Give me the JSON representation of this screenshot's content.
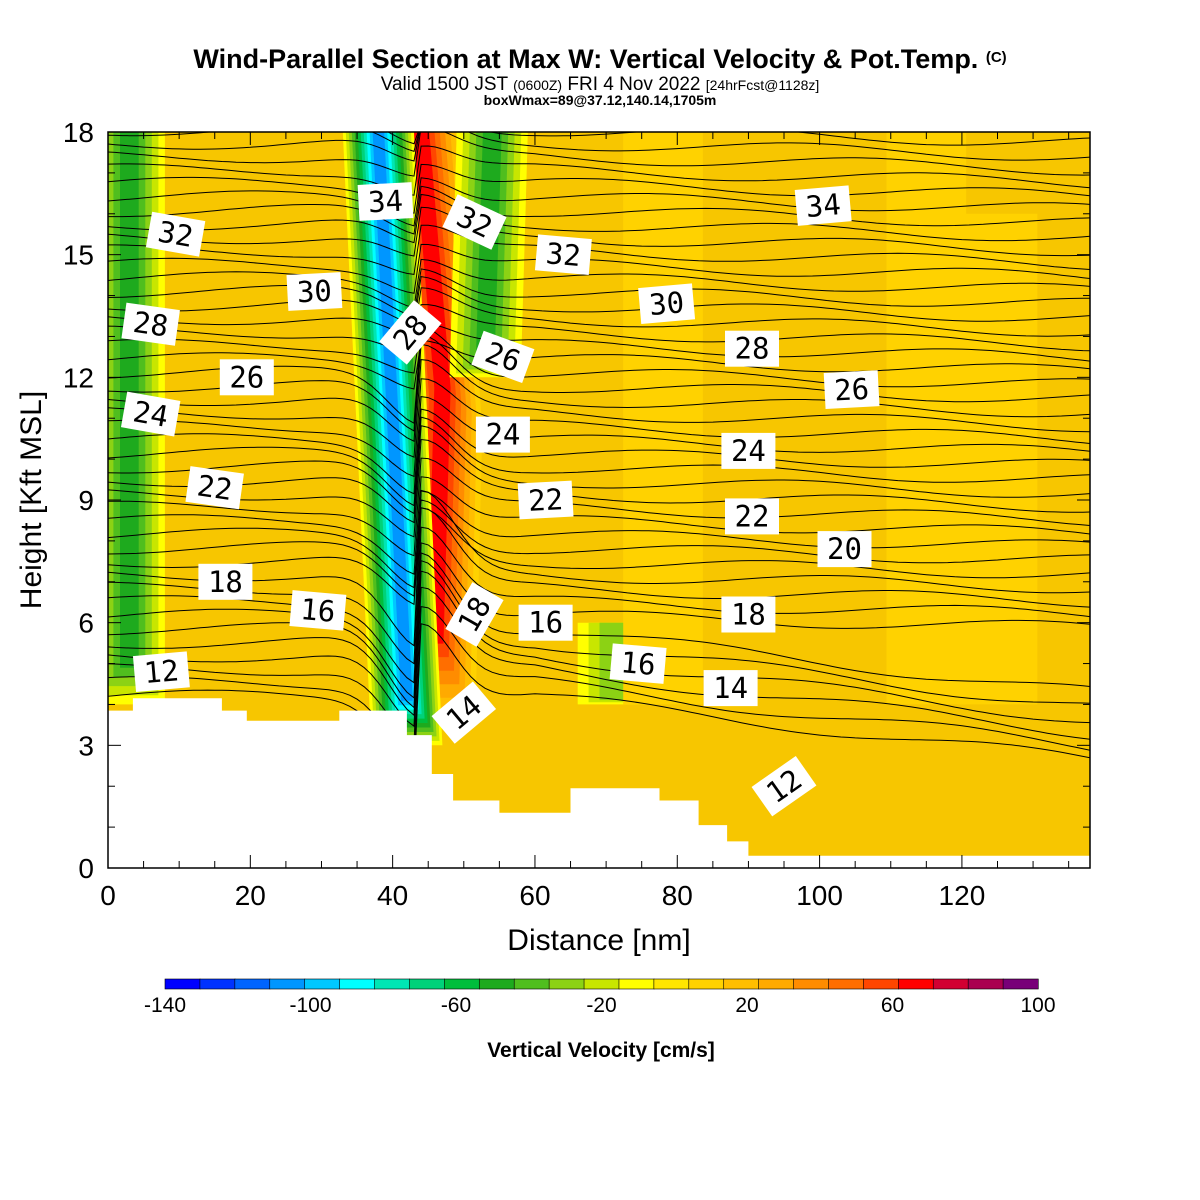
{
  "header": {
    "title_main": "Wind-Parallel Section at Max W: Vertical Velocity & Pot.Temp.",
    "title_mark": "(C)",
    "valid_prefix": "Valid 1500 JST",
    "valid_utc": "(0600Z)",
    "valid_date": "FRI 4 Nov 2022",
    "valid_fcst": "[24hrFcst@1128z]",
    "box_info": "boxWmax=89@37.12,140.14,1705m"
  },
  "colors": {
    "background": "#ffffff",
    "terrain": "#ffffff",
    "contour": "#000000",
    "base_fill": "#f7c600"
  },
  "chart_data": {
    "type": "heatmap",
    "xlabel": "Distance [nm]",
    "ylabel": "Height [Kft MSL]",
    "xlim": [
      0,
      138
    ],
    "ylim": [
      0,
      18
    ],
    "x_ticks": [
      0,
      20,
      40,
      60,
      80,
      100,
      120
    ],
    "y_ticks": [
      0,
      3,
      6,
      9,
      12,
      15,
      18
    ],
    "colorbar": {
      "label": "Vertical Velocity [cm/s]",
      "range": [
        -140,
        100
      ],
      "step": 10,
      "tick_labels": [
        -140,
        -100,
        -60,
        -20,
        20,
        60,
        100
      ],
      "colors": [
        "#0000ff",
        "#0032ff",
        "#0064ff",
        "#0096ff",
        "#00c8ff",
        "#00ffff",
        "#00e6b4",
        "#00d27a",
        "#00be3c",
        "#1eaa1e",
        "#50be1e",
        "#8cd214",
        "#c8e600",
        "#ffff00",
        "#ffe600",
        "#ffd200",
        "#ffbe00",
        "#ffaa00",
        "#ff8c00",
        "#ff6e00",
        "#ff4600",
        "#ff0000",
        "#d20032",
        "#aa0050",
        "#780078"
      ]
    },
    "velocity_features": [
      {
        "kind": "updraft",
        "x_top": 44,
        "x_mid": 47,
        "x_bottom": 46,
        "y_range": [
          3.5,
          18
        ],
        "peak": 89
      },
      {
        "kind": "downdraft",
        "x_top": 38,
        "x_bottom": 42,
        "y_range": [
          3,
          18
        ],
        "peak": -110
      },
      {
        "kind": "downdraft",
        "x_top": 54,
        "x_bottom": 53,
        "y_range": [
          12,
          18
        ],
        "peak": -50
      },
      {
        "kind": "downdraft",
        "x_top": 3,
        "x_bottom": 3,
        "y_range": [
          4,
          18
        ],
        "peak": -50
      },
      {
        "kind": "downdraft",
        "x_top": 71,
        "x_bottom": 71,
        "y_range": [
          4,
          6
        ],
        "peak": -30
      },
      {
        "kind": "updraft",
        "x_top": 78,
        "x_bottom": 78,
        "y_range": [
          4,
          18
        ],
        "peak": 20
      },
      {
        "kind": "updraft",
        "x_top": 115,
        "x_bottom": 115,
        "y_range": [
          4,
          18
        ],
        "peak": 20
      },
      {
        "kind": "updraft",
        "x_top": 125,
        "x_bottom": 125,
        "y_range": [
          4,
          16
        ],
        "peak": 20
      }
    ],
    "terrain_profile": [
      {
        "x": 0,
        "h": 3.85
      },
      {
        "x": 3.5,
        "h": 4.15
      },
      {
        "x": 16,
        "h": 3.85
      },
      {
        "x": 19.5,
        "h": 3.6
      },
      {
        "x": 32.5,
        "h": 3.85
      },
      {
        "x": 42,
        "h": 3.25
      },
      {
        "x": 45.5,
        "h": 2.3
      },
      {
        "x": 48.5,
        "h": 1.65
      },
      {
        "x": 55,
        "h": 1.35
      },
      {
        "x": 65,
        "h": 1.95
      },
      {
        "x": 77.5,
        "h": 1.65
      },
      {
        "x": 83,
        "h": 1.05
      },
      {
        "x": 87,
        "h": 0.65
      },
      {
        "x": 90,
        "h": 0.3
      },
      {
        "x": 138,
        "h": 0.3
      }
    ],
    "theta_contours": {
      "levels": [
        12,
        14,
        16,
        18,
        20,
        22,
        24,
        26,
        28,
        30,
        32,
        34
      ],
      "labels": [
        {
          "text": "12",
          "x": 7.5,
          "y": 4.8,
          "angle": -5
        },
        {
          "text": "18",
          "x": 16.5,
          "y": 7.0,
          "angle": 0
        },
        {
          "text": "16",
          "x": 29.5,
          "y": 6.3,
          "angle": 5
        },
        {
          "text": "22",
          "x": 15,
          "y": 9.3,
          "angle": 8
        },
        {
          "text": "24",
          "x": 6,
          "y": 11.1,
          "angle": 10
        },
        {
          "text": "26",
          "x": 19.5,
          "y": 12.0,
          "angle": 0
        },
        {
          "text": "28",
          "x": 6,
          "y": 13.3,
          "angle": 8
        },
        {
          "text": "30",
          "x": 29,
          "y": 14.1,
          "angle": -3
        },
        {
          "text": "32",
          "x": 9.5,
          "y": 15.5,
          "angle": 10
        },
        {
          "text": "34",
          "x": 39,
          "y": 16.3,
          "angle": -3
        },
        {
          "text": "28",
          "x": 42.5,
          "y": 13.1,
          "angle": -50
        },
        {
          "text": "32",
          "x": 51.5,
          "y": 15.8,
          "angle": 25
        },
        {
          "text": "26",
          "x": 55.5,
          "y": 12.5,
          "angle": 20
        },
        {
          "text": "24",
          "x": 55.5,
          "y": 10.6,
          "angle": 0
        },
        {
          "text": "22",
          "x": 61.5,
          "y": 9.0,
          "angle": -3
        },
        {
          "text": "18",
          "x": 51.5,
          "y": 6.2,
          "angle": -60
        },
        {
          "text": "14",
          "x": 50,
          "y": 3.8,
          "angle": -40
        },
        {
          "text": "16",
          "x": 61.5,
          "y": 6.0,
          "angle": 0
        },
        {
          "text": "32",
          "x": 64,
          "y": 15.0,
          "angle": 5
        },
        {
          "text": "30",
          "x": 78.5,
          "y": 13.8,
          "angle": -5
        },
        {
          "text": "16",
          "x": 74.5,
          "y": 5.0,
          "angle": 5
        },
        {
          "text": "28",
          "x": 90.5,
          "y": 12.7,
          "angle": 0
        },
        {
          "text": "24",
          "x": 90,
          "y": 10.2,
          "angle": 0
        },
        {
          "text": "22",
          "x": 90.5,
          "y": 8.6,
          "angle": 0
        },
        {
          "text": "18",
          "x": 90,
          "y": 6.2,
          "angle": 0
        },
        {
          "text": "14",
          "x": 87.5,
          "y": 4.4,
          "angle": 0
        },
        {
          "text": "12",
          "x": 95,
          "y": 2.0,
          "angle": -35
        },
        {
          "text": "34",
          "x": 100.5,
          "y": 16.2,
          "angle": -5
        },
        {
          "text": "26",
          "x": 104.5,
          "y": 11.7,
          "angle": -3
        },
        {
          "text": "20",
          "x": 103.5,
          "y": 7.8,
          "angle": 0
        }
      ]
    }
  }
}
